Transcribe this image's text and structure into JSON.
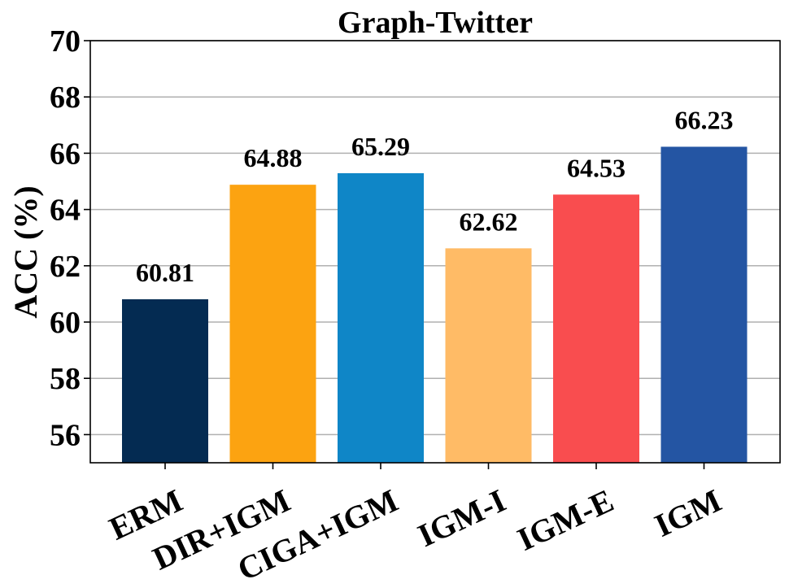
{
  "chart_data": {
    "type": "bar",
    "title": "Graph-Twitter",
    "xlabel": "",
    "ylabel": "ACC (%)",
    "ylim": [
      55,
      70
    ],
    "yticks": [
      56,
      58,
      60,
      62,
      64,
      66,
      68,
      70
    ],
    "grid": "y",
    "categories": [
      "ERM",
      "DIR+IGM",
      "CIGA+IGM",
      "IGM-I",
      "IGM-E",
      "IGM"
    ],
    "values": [
      60.81,
      64.88,
      65.29,
      62.62,
      64.53,
      66.23
    ],
    "value_labels": [
      "60.81",
      "64.88",
      "65.29",
      "62.62",
      "64.53",
      "66.23"
    ],
    "colors": [
      "#042b52",
      "#fca311",
      "#0f86c7",
      "#ffbb66",
      "#f94d4f",
      "#2455a3"
    ]
  }
}
